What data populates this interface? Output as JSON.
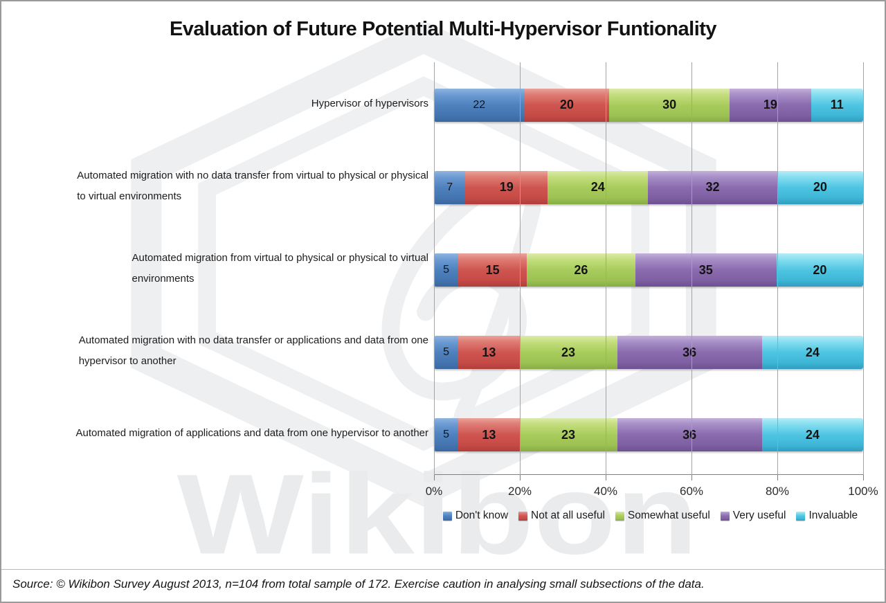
{
  "title": "Evaluation of Future Potential Multi-Hypervisor Funtionality",
  "watermark": {
    "text": "Wikibon",
    "color": "#eaecee"
  },
  "source_note": "Source: © Wikibon Survey August 2013, n=104 from total sample of 172. Exercise caution in analysing small subsections of the data.",
  "chart_data": {
    "type": "bar",
    "variant": "stacked-horizontal-100pct",
    "title": "Evaluation of Future Potential Multi-Hypervisor Funtionality",
    "categories": [
      "Hypervisor of hypervisors",
      "Automated migration with no data transfer from virtual to physical or physical\nto virtual environments",
      "Automated migration from virtual to physical or physical to virtual\nenvironments",
      "Automated migration with no data transfer or applications and data from one\nhypervisor to another",
      "Automated migration of applications and data from one hypervisor to another"
    ],
    "series": [
      {
        "name": "Don't know",
        "color": "#4E81BD",
        "values": [
          22,
          7,
          5,
          5,
          5
        ]
      },
      {
        "name": "Not at all useful",
        "color": "#CF5551",
        "values": [
          20,
          19,
          15,
          13,
          13
        ]
      },
      {
        "name": "Somewhat useful",
        "color": "#A8CC5C",
        "values": [
          30,
          24,
          26,
          23,
          23
        ]
      },
      {
        "name": "Very useful",
        "color": "#8A6BAE",
        "values": [
          19,
          32,
          35,
          36,
          36
        ]
      },
      {
        "name": "Invaluable",
        "color": "#4EC5E2",
        "values": [
          11,
          20,
          20,
          24,
          24
        ]
      }
    ],
    "x_ticks": [
      "0%",
      "20%",
      "40%",
      "60%",
      "80%",
      "100%"
    ],
    "xlim": [
      0,
      100
    ],
    "grid": true,
    "value_labels": true,
    "legend_position": "bottom"
  }
}
